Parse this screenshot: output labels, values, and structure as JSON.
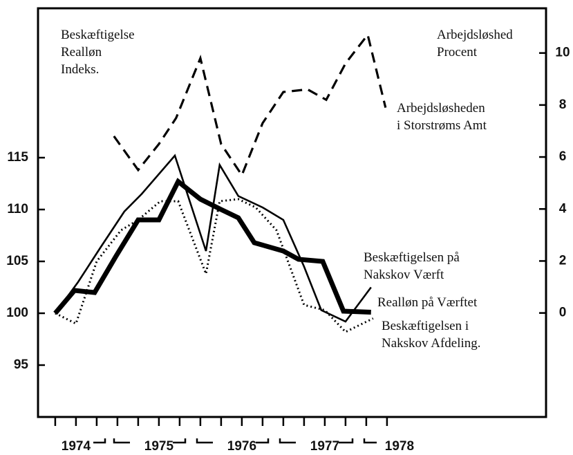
{
  "chart_data": {
    "type": "line",
    "ylabel": [
      "Beskæftigelse",
      "Realløn",
      "Indeks."
    ],
    "y2label": [
      "Arbejdsløshed",
      "Procent"
    ],
    "xlim": [
      -0.83,
      23.67
    ],
    "xticks": [
      0,
      1,
      2,
      3,
      4,
      5,
      6,
      7,
      8,
      9,
      10,
      11,
      12,
      13,
      14,
      15,
      16
    ],
    "year_labels": [
      {
        "value": 1,
        "label": "1974"
      },
      {
        "value": 5,
        "label": "1975"
      },
      {
        "value": 9,
        "label": "1976"
      },
      {
        "value": 13,
        "label": "1977"
      },
      {
        "value": 16.6,
        "label": "1978"
      }
    ],
    "ylim": [
      90,
      129.4
    ],
    "yticks": [
      95,
      100,
      105,
      110,
      115
    ],
    "y2lim": [
      -4,
      11.72
    ],
    "y2ticks": [
      0,
      2,
      4,
      6,
      8,
      10
    ],
    "series": [
      {
        "name": [
          "Beskæftigelsen på",
          "Nakskov Værft"
        ],
        "color": "#000",
        "style": "thick",
        "x": [
          0,
          0.93,
          1.9,
          2.93,
          4,
          5,
          5.93,
          7,
          8,
          8.83,
          9.6,
          11,
          11.73,
          12.9,
          13.9,
          15.23
        ],
        "values": [
          100,
          102.2,
          102,
          105.5,
          109,
          109,
          112.7,
          111,
          110,
          109.2,
          106.8,
          106,
          105.2,
          105,
          100.2,
          100.1
        ]
      },
      {
        "name": [
          "Realløn på Værftet"
        ],
        "color": "#000",
        "style": "thin",
        "x": [
          0,
          1.1,
          2.17,
          3.33,
          4.17,
          5.77,
          7.27,
          7.93,
          8.83,
          10,
          11,
          12,
          12.83,
          14,
          15.23
        ],
        "values": [
          100,
          103,
          106.3,
          109.8,
          111.5,
          115.2,
          106,
          114.3,
          111.3,
          110.2,
          109,
          104.5,
          100.3,
          99.2,
          102.5
        ]
      },
      {
        "name": [
          "Beskæftigelsen i",
          "Nakskov Afdeling."
        ],
        "color": "#000",
        "style": "dotted",
        "x": [
          0,
          1,
          2,
          3.17,
          4,
          5.07,
          5.93,
          7.27,
          7.93,
          8.83,
          9.67,
          10.67,
          12,
          13,
          14,
          15.33
        ],
        "values": [
          100,
          99,
          105,
          108,
          109,
          110.8,
          110.8,
          103.8,
          110.8,
          111,
          110.2,
          108,
          100.8,
          100.3,
          98.2,
          99.5
        ]
      },
      {
        "name": [
          "Arbejdsløsheden",
          "i Storstrøms Amt"
        ],
        "color": "#000",
        "style": "dashed",
        "axis": "y2",
        "x": [
          2.83,
          4,
          5,
          5.83,
          7,
          8,
          9,
          10,
          11,
          12.17,
          13.07,
          14,
          15.07,
          15.93
        ],
        "values": [
          6.8,
          5.5,
          6.5,
          7.5,
          9.8,
          6.5,
          5.3,
          7.3,
          8.5,
          8.6,
          8.2,
          9.6,
          10.7,
          7.9
        ]
      }
    ]
  }
}
